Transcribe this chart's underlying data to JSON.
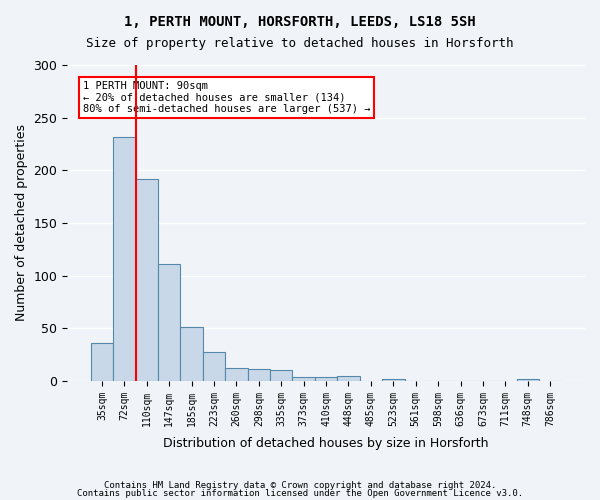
{
  "title1": "1, PERTH MOUNT, HORSFORTH, LEEDS, LS18 5SH",
  "title2": "Size of property relative to detached houses in Horsforth",
  "xlabel": "Distribution of detached houses by size in Horsforth",
  "ylabel": "Number of detached properties",
  "categories": [
    "35sqm",
    "72sqm",
    "110sqm",
    "147sqm",
    "185sqm",
    "223sqm",
    "260sqm",
    "298sqm",
    "335sqm",
    "373sqm",
    "410sqm",
    "448sqm",
    "485sqm",
    "523sqm",
    "561sqm",
    "598sqm",
    "636sqm",
    "673sqm",
    "711sqm",
    "748sqm",
    "786sqm"
  ],
  "values": [
    36,
    232,
    192,
    111,
    51,
    27,
    12,
    11,
    10,
    4,
    4,
    5,
    0,
    2,
    0,
    0,
    0,
    0,
    0,
    2,
    0
  ],
  "bar_color": "#c8d8e8",
  "bar_edge_color": "#5588aa",
  "red_line_index": 1.5,
  "annotation_text": "1 PERTH MOUNT: 90sqm\n← 20% of detached houses are smaller (134)\n80% of semi-detached houses are larger (537) →",
  "annotation_box_color": "white",
  "annotation_box_edge_color": "red",
  "footer1": "Contains HM Land Registry data © Crown copyright and database right 2024.",
  "footer2": "Contains public sector information licensed under the Open Government Licence v3.0.",
  "ylim": [
    0,
    300
  ],
  "yticks": [
    0,
    50,
    100,
    150,
    200,
    250,
    300
  ],
  "background_color": "#f0f4f8",
  "grid_color": "white"
}
